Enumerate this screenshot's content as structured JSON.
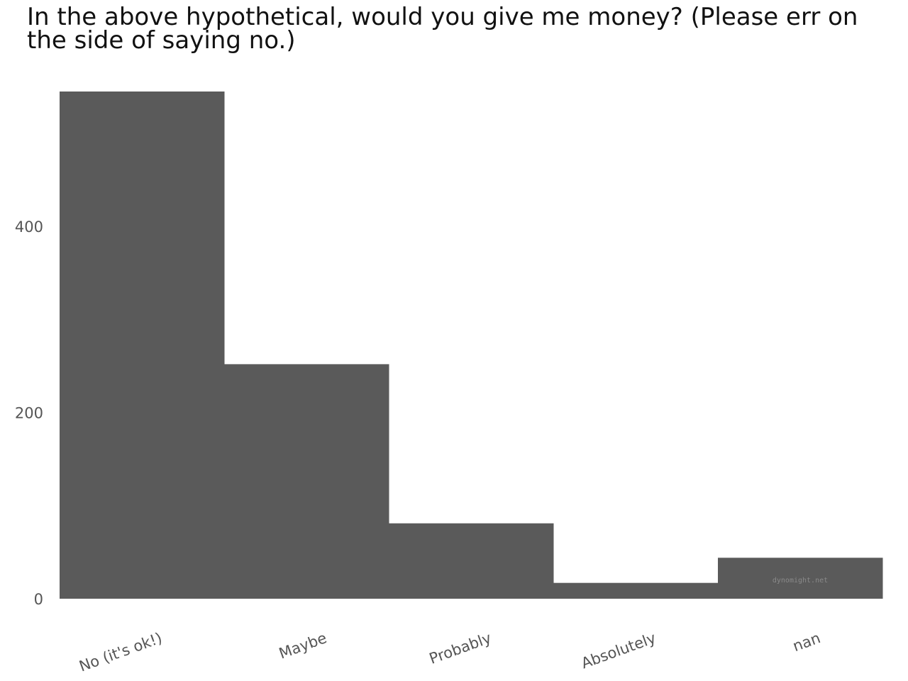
{
  "chart_data": {
    "type": "bar",
    "title": "In the above hypothetical, would you give me money? (Please err on the side of saying no.)",
    "categories": [
      "No (it's ok!)",
      "Maybe",
      "Probably",
      "Absolutely",
      "nan"
    ],
    "values": [
      545,
      252,
      81,
      17,
      44
    ],
    "yticks": [
      0,
      200,
      400
    ],
    "ylim": [
      0,
      545
    ],
    "grid": false,
    "bar_color": "#5a5a5a",
    "watermark": "dynomight.net",
    "watermark_color": "#8a8a8a"
  }
}
